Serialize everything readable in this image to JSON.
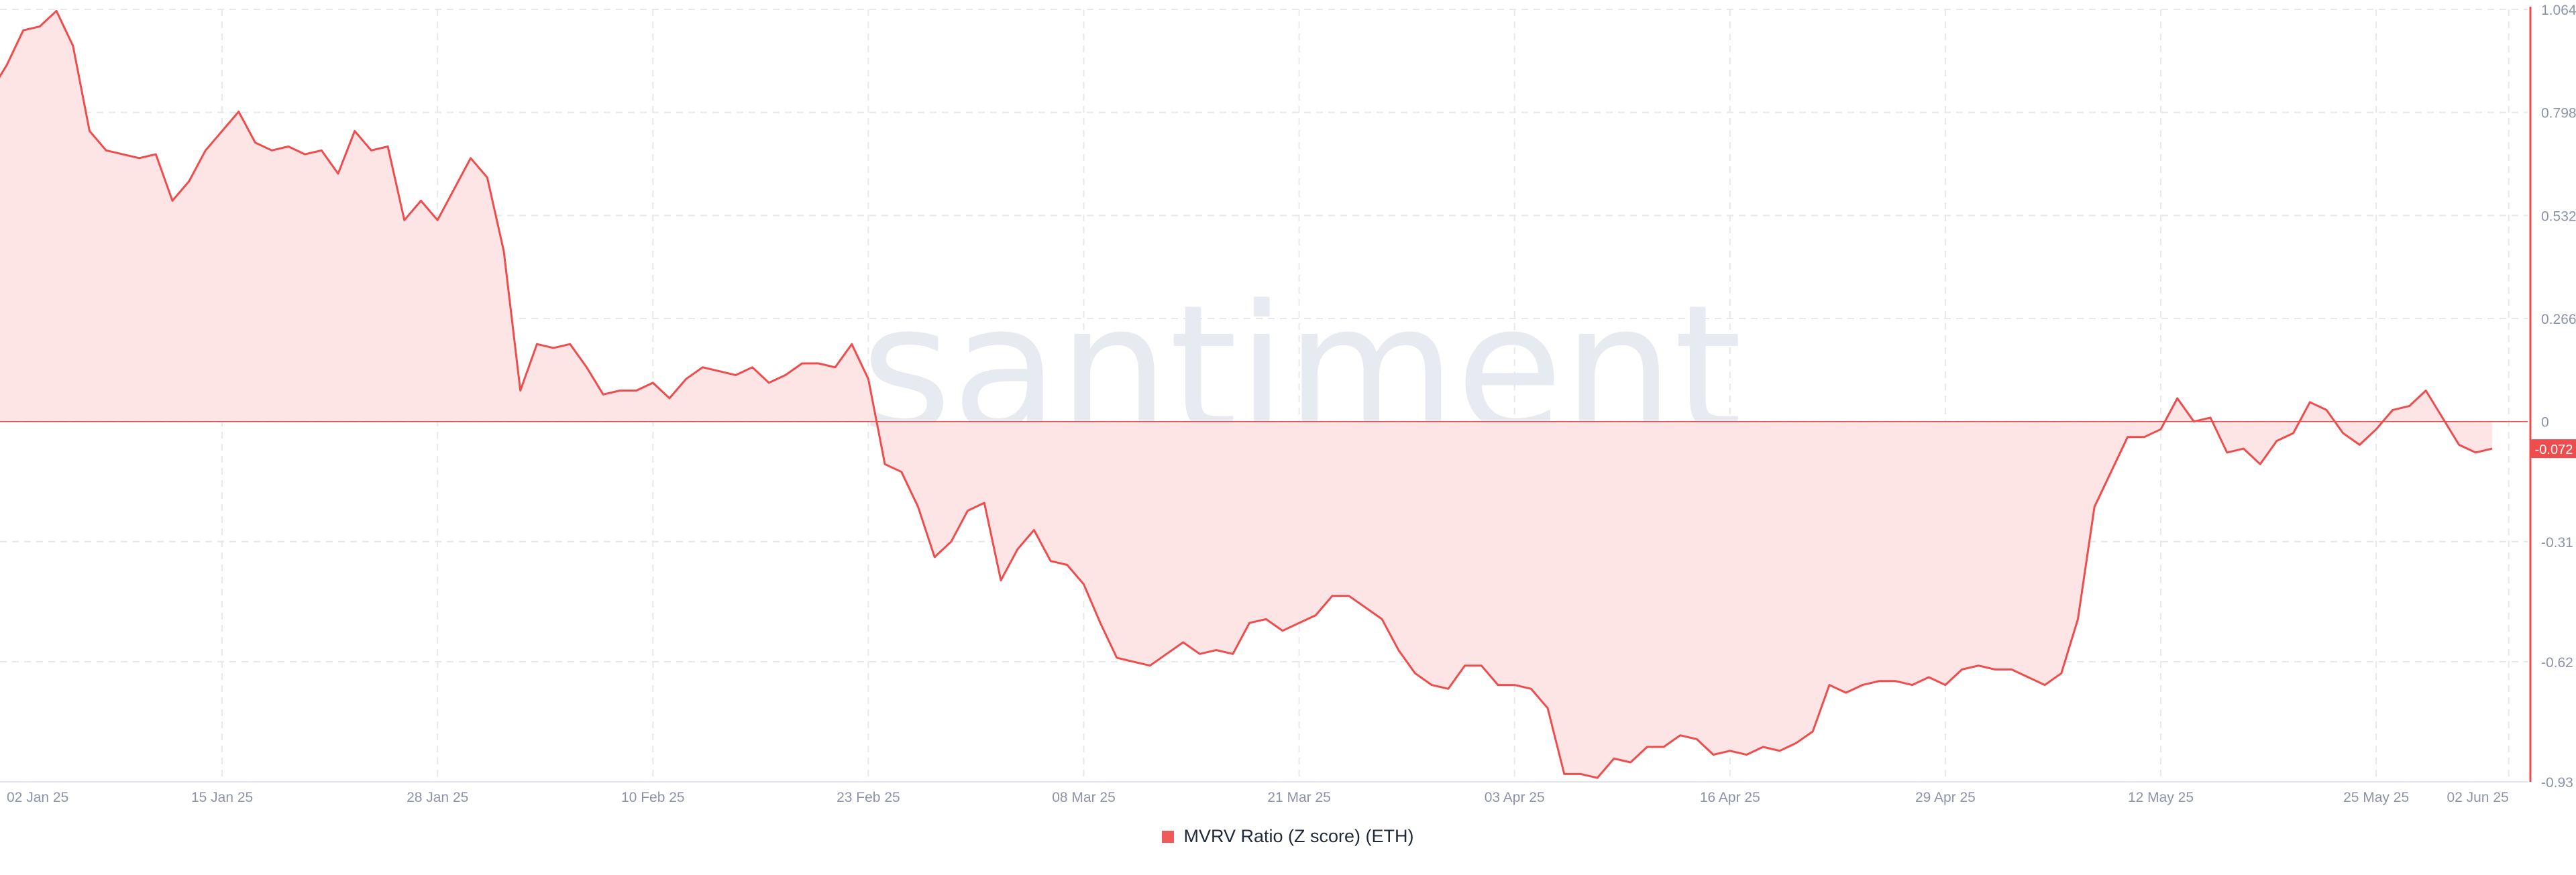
{
  "watermark": "santiment",
  "colors": {
    "line": "#ef4d4d",
    "fill": "#fde4e5",
    "grid": "#e6e8ec",
    "axis_text": "#8c93a8",
    "badge": "#ef4d4d"
  },
  "legend": {
    "label": "MVRV Ratio (Z score) (ETH)"
  },
  "last_value_label": "-0.072",
  "chart_data": {
    "type": "area",
    "title": "",
    "xlabel": "",
    "ylabel": "",
    "x_ticks": [
      "02 Jan 25",
      "15 Jan 25",
      "28 Jan 25",
      "10 Feb 25",
      "23 Feb 25",
      "08 Mar 25",
      "21 Mar 25",
      "03 Apr 25",
      "16 Apr 25",
      "29 Apr 25",
      "12 May 25",
      "25 May 25",
      "02 Jun 25"
    ],
    "y_ticks": [
      "1.064",
      "0.798",
      "0.532",
      "0.266",
      "0",
      "-0.31",
      "-0.62",
      "-0.93"
    ],
    "ylim": [
      -0.93,
      1.064
    ],
    "grid": true,
    "legend_position": "bottom-center",
    "series": [
      {
        "name": "MVRV Ratio (Z score) (ETH)",
        "x_start": "2025-01-01",
        "step_days": 1,
        "values": [
          0.85,
          0.92,
          1.01,
          1.02,
          1.06,
          0.97,
          0.75,
          0.7,
          0.69,
          0.68,
          0.69,
          0.57,
          0.62,
          0.7,
          0.75,
          0.8,
          0.72,
          0.7,
          0.71,
          0.69,
          0.7,
          0.64,
          0.75,
          0.7,
          0.71,
          0.52,
          0.57,
          0.52,
          0.6,
          0.68,
          0.63,
          0.44,
          0.08,
          0.2,
          0.19,
          0.2,
          0.14,
          0.07,
          0.08,
          0.08,
          0.1,
          0.06,
          0.11,
          0.14,
          0.13,
          0.12,
          0.14,
          0.1,
          0.12,
          0.15,
          0.15,
          0.14,
          0.2,
          0.11,
          -0.11,
          -0.13,
          -0.22,
          -0.35,
          -0.31,
          -0.23,
          -0.21,
          -0.41,
          -0.33,
          -0.28,
          -0.36,
          -0.37,
          -0.42,
          -0.52,
          -0.61,
          -0.62,
          -0.63,
          -0.6,
          -0.57,
          -0.6,
          -0.59,
          -0.6,
          -0.52,
          -0.51,
          -0.54,
          -0.52,
          -0.5,
          -0.45,
          -0.45,
          -0.48,
          -0.51,
          -0.59,
          -0.65,
          -0.68,
          -0.69,
          -0.63,
          -0.63,
          -0.68,
          -0.68,
          -0.69,
          -0.74,
          -0.91,
          -0.91,
          -0.92,
          -0.87,
          -0.88,
          -0.84,
          -0.84,
          -0.81,
          -0.82,
          -0.86,
          -0.85,
          -0.86,
          -0.84,
          -0.85,
          -0.83,
          -0.8,
          -0.68,
          -0.7,
          -0.68,
          -0.67,
          -0.67,
          -0.68,
          -0.66,
          -0.68,
          -0.64,
          -0.63,
          -0.64,
          -0.64,
          -0.66,
          -0.68,
          -0.65,
          -0.51,
          -0.22,
          -0.13,
          -0.04,
          -0.04,
          -0.02,
          0.06,
          0.0,
          0.01,
          -0.08,
          -0.07,
          -0.11,
          -0.05,
          -0.03,
          0.05,
          0.03,
          -0.03,
          -0.06,
          -0.02,
          0.03,
          0.04,
          0.08,
          0.01,
          -0.06,
          -0.08,
          -0.07
        ]
      }
    ]
  }
}
